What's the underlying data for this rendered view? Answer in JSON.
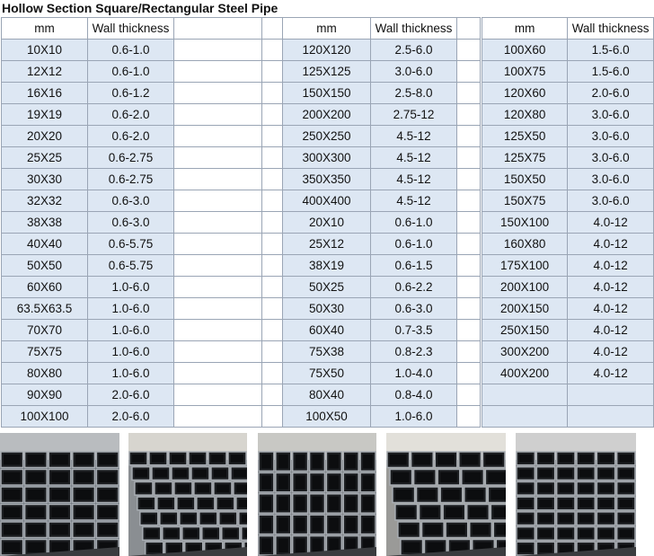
{
  "title": "Hollow Section Square/Rectangular Steel Pipe",
  "columns": {
    "mm": "mm",
    "wall": "Wall thickness"
  },
  "table1": [
    [
      "10X10",
      "0.6-1.0"
    ],
    [
      "12X12",
      "0.6-1.0"
    ],
    [
      "16X16",
      "0.6-1.2"
    ],
    [
      "19X19",
      "0.6-2.0"
    ],
    [
      "20X20",
      "0.6-2.0"
    ],
    [
      "25X25",
      "0.6-2.75"
    ],
    [
      "30X30",
      "0.6-2.75"
    ],
    [
      "32X32",
      "0.6-3.0"
    ],
    [
      "38X38",
      "0.6-3.0"
    ],
    [
      "40X40",
      "0.6-5.75"
    ],
    [
      "50X50",
      "0.6-5.75"
    ],
    [
      "60X60",
      "1.0-6.0"
    ],
    [
      "63.5X63.5",
      "1.0-6.0"
    ],
    [
      "70X70",
      "1.0-6.0"
    ],
    [
      "75X75",
      "1.0-6.0"
    ],
    [
      "80X80",
      "1.0-6.0"
    ],
    [
      "90X90",
      "2.0-6.0"
    ],
    [
      "100X100",
      "2.0-6.0"
    ]
  ],
  "table2": [
    [
      "120X120",
      "2.5-6.0"
    ],
    [
      "125X125",
      "3.0-6.0"
    ],
    [
      "150X150",
      "2.5-8.0"
    ],
    [
      "200X200",
      "2.75-12"
    ],
    [
      "250X250",
      "4.5-12"
    ],
    [
      "300X300",
      "4.5-12"
    ],
    [
      "350X350",
      "4.5-12"
    ],
    [
      "400X400",
      "4.5-12"
    ],
    [
      "20X10",
      "0.6-1.0"
    ],
    [
      "25X12",
      "0.6-1.0"
    ],
    [
      "38X19",
      "0.6-1.5"
    ],
    [
      "50X25",
      "0.6-2.2"
    ],
    [
      "50X30",
      "0.6-3.0"
    ],
    [
      "60X40",
      "0.7-3.5"
    ],
    [
      "75X38",
      "0.8-2.3"
    ],
    [
      "75X50",
      "1.0-4.0"
    ],
    [
      "80X40",
      "0.8-4.0"
    ],
    [
      "100X50",
      "1.0-6.0"
    ]
  ],
  "table3": [
    [
      "100X60",
      "1.5-6.0"
    ],
    [
      "100X75",
      "1.5-6.0"
    ],
    [
      "120X60",
      "2.0-6.0"
    ],
    [
      "120X80",
      "3.0-6.0"
    ],
    [
      "125X50",
      "3.0-6.0"
    ],
    [
      "125X75",
      "3.0-6.0"
    ],
    [
      "150X50",
      "3.0-6.0"
    ],
    [
      "150X75",
      "3.0-6.0"
    ],
    [
      "150X100",
      "4.0-12"
    ],
    [
      "160X80",
      "4.0-12"
    ],
    [
      "175X100",
      "4.0-12"
    ],
    [
      "200X100",
      "4.0-12"
    ],
    [
      "200X150",
      "4.0-12"
    ],
    [
      "250X150",
      "4.0-12"
    ],
    [
      "300X200",
      "4.0-12"
    ],
    [
      "400X200",
      "4.0-12"
    ],
    [
      "",
      ""
    ],
    [
      "",
      ""
    ]
  ],
  "colors": {
    "row_fill": "#dde7f3",
    "grid_line": "#9aa5b5"
  },
  "photos": [
    "steel-pipe-photo",
    "steel-pipe-photo",
    "steel-pipe-photo",
    "steel-pipe-photo",
    "steel-pipe-photo"
  ]
}
